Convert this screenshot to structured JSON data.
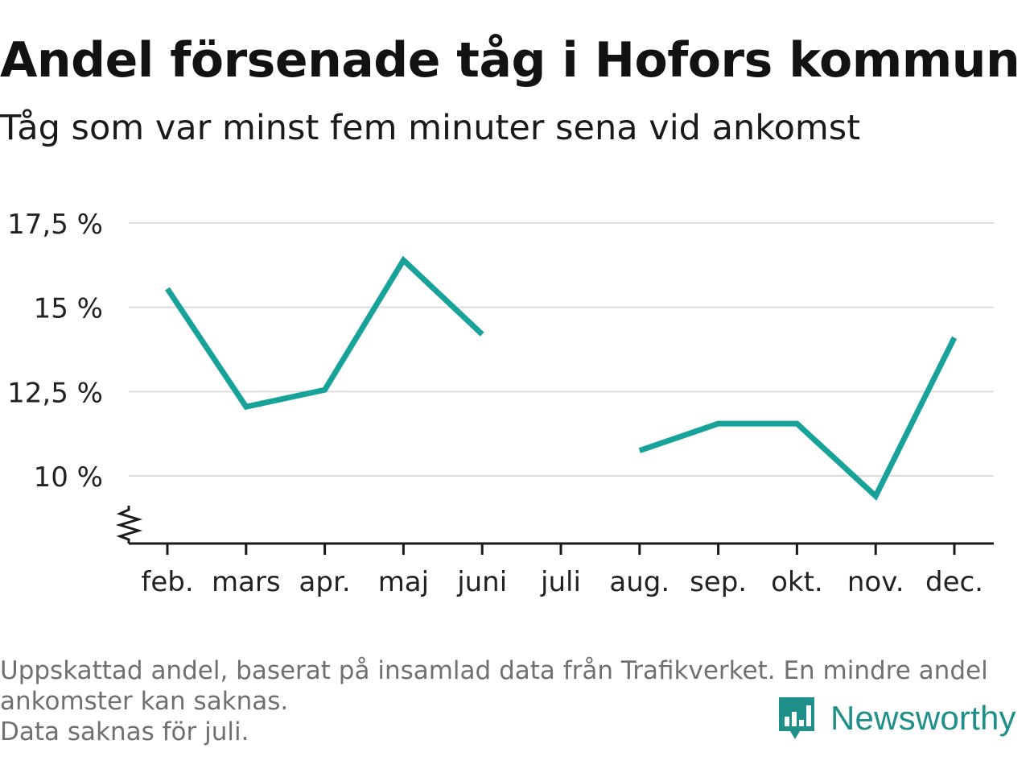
{
  "title": "Andel försenade tåg i Hofors kommun",
  "subtitle": "Tåg som var minst fem minuter sena vid ankomst",
  "footer": {
    "line1": "Uppskattad andel, baserat på insamlad data från Trafikverket. En mindre andel",
    "line2": "ankomster kan saknas.",
    "line3": "Data saknas för juli."
  },
  "brand": {
    "name": "Newsworthy",
    "icon": "newsworthy-logo-icon"
  },
  "colors": {
    "line": "#17a39a",
    "grid": "#dcdcdc",
    "axis": "#1a1a1a",
    "brand": "#1f8f8a"
  },
  "chart_data": {
    "type": "line",
    "categories": [
      "feb.",
      "mars",
      "apr.",
      "maj",
      "juni",
      "juli",
      "aug.",
      "sep.",
      "okt.",
      "nov.",
      "dec."
    ],
    "series": [
      {
        "values": [
          15.55,
          12.05,
          12.55,
          16.4,
          14.2,
          null,
          10.75,
          11.55,
          11.55,
          9.4,
          14.1
        ]
      }
    ],
    "y_ticks": [
      10,
      12.5,
      15,
      17.5
    ],
    "y_tick_labels": [
      "10 %",
      "12,5 %",
      "15 %",
      "17,5 %"
    ],
    "ylim": [
      8.4,
      17.5
    ],
    "y_axis_break": true,
    "grid": true
  }
}
